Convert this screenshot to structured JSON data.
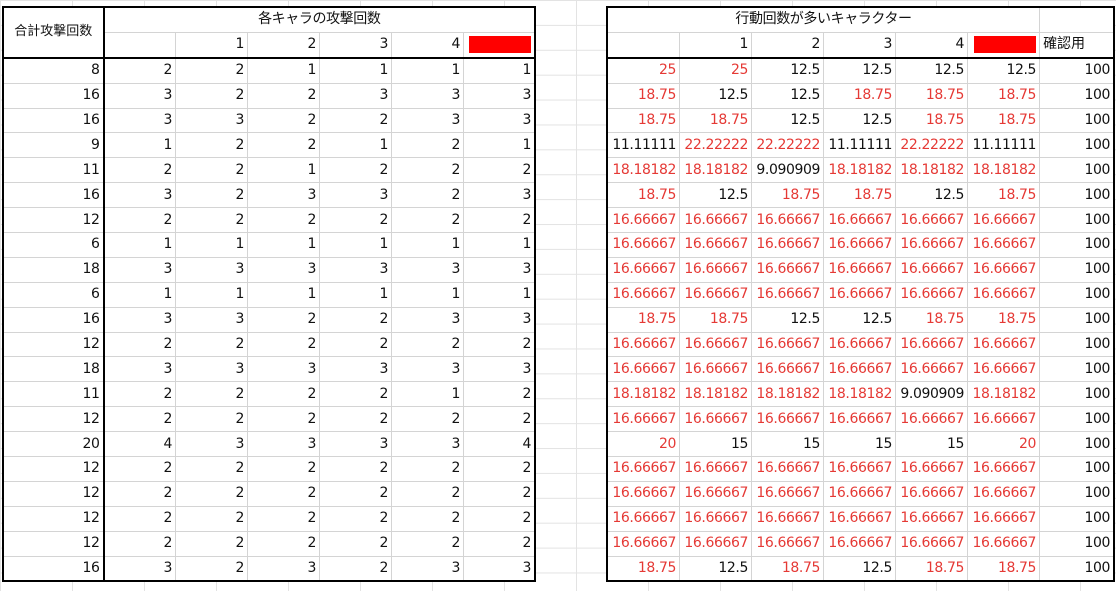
{
  "left": {
    "total_header": "合計攻撃回数",
    "title": "各キャラの攻撃回数",
    "col_numbers": [
      "",
      "1",
      "2",
      "3",
      "4"
    ],
    "rows": [
      [
        "8",
        "2",
        "2",
        "1",
        "1",
        "1",
        "1"
      ],
      [
        "16",
        "3",
        "2",
        "2",
        "3",
        "3",
        "3"
      ],
      [
        "16",
        "3",
        "3",
        "2",
        "2",
        "3",
        "3"
      ],
      [
        "9",
        "1",
        "2",
        "2",
        "1",
        "2",
        "1"
      ],
      [
        "11",
        "2",
        "2",
        "1",
        "2",
        "2",
        "2"
      ],
      [
        "16",
        "3",
        "2",
        "3",
        "3",
        "2",
        "3"
      ],
      [
        "12",
        "2",
        "2",
        "2",
        "2",
        "2",
        "2"
      ],
      [
        "6",
        "1",
        "1",
        "1",
        "1",
        "1",
        "1"
      ],
      [
        "18",
        "3",
        "3",
        "3",
        "3",
        "3",
        "3"
      ],
      [
        "6",
        "1",
        "1",
        "1",
        "1",
        "1",
        "1"
      ],
      [
        "16",
        "3",
        "3",
        "2",
        "2",
        "3",
        "3"
      ],
      [
        "12",
        "2",
        "2",
        "2",
        "2",
        "2",
        "2"
      ],
      [
        "18",
        "3",
        "3",
        "3",
        "3",
        "3",
        "3"
      ],
      [
        "11",
        "2",
        "2",
        "2",
        "2",
        "1",
        "2"
      ],
      [
        "12",
        "2",
        "2",
        "2",
        "2",
        "2",
        "2"
      ],
      [
        "20",
        "4",
        "3",
        "3",
        "3",
        "3",
        "4"
      ],
      [
        "12",
        "2",
        "2",
        "2",
        "2",
        "2",
        "2"
      ],
      [
        "12",
        "2",
        "2",
        "2",
        "2",
        "2",
        "2"
      ],
      [
        "12",
        "2",
        "2",
        "2",
        "2",
        "2",
        "2"
      ],
      [
        "12",
        "2",
        "2",
        "2",
        "2",
        "2",
        "2"
      ],
      [
        "16",
        "3",
        "2",
        "3",
        "2",
        "3",
        "3"
      ]
    ]
  },
  "right": {
    "title": "行動回数が多いキャラクター",
    "col_numbers": [
      "",
      "1",
      "2",
      "3",
      "4"
    ],
    "check_label": "確認用",
    "rows": [
      [
        [
          "25",
          1
        ],
        [
          "25",
          1
        ],
        [
          "12.5",
          0
        ],
        [
          "12.5",
          0
        ],
        [
          "12.5",
          0
        ],
        [
          "12.5",
          0
        ],
        [
          "100",
          0
        ]
      ],
      [
        [
          "18.75",
          1
        ],
        [
          "12.5",
          0
        ],
        [
          "12.5",
          0
        ],
        [
          "18.75",
          1
        ],
        [
          "18.75",
          1
        ],
        [
          "18.75",
          1
        ],
        [
          "100",
          0
        ]
      ],
      [
        [
          "18.75",
          1
        ],
        [
          "18.75",
          1
        ],
        [
          "12.5",
          0
        ],
        [
          "12.5",
          0
        ],
        [
          "18.75",
          1
        ],
        [
          "18.75",
          1
        ],
        [
          "100",
          0
        ]
      ],
      [
        [
          "11.11111",
          0
        ],
        [
          "22.22222",
          1
        ],
        [
          "22.22222",
          1
        ],
        [
          "11.11111",
          0
        ],
        [
          "22.22222",
          1
        ],
        [
          "11.11111",
          0
        ],
        [
          "100",
          0
        ]
      ],
      [
        [
          "18.18182",
          1
        ],
        [
          "18.18182",
          1
        ],
        [
          "9.090909",
          0
        ],
        [
          "18.18182",
          1
        ],
        [
          "18.18182",
          1
        ],
        [
          "18.18182",
          1
        ],
        [
          "100",
          0
        ]
      ],
      [
        [
          "18.75",
          1
        ],
        [
          "12.5",
          0
        ],
        [
          "18.75",
          1
        ],
        [
          "18.75",
          1
        ],
        [
          "12.5",
          0
        ],
        [
          "18.75",
          1
        ],
        [
          "100",
          0
        ]
      ],
      [
        [
          "16.66667",
          1
        ],
        [
          "16.66667",
          1
        ],
        [
          "16.66667",
          1
        ],
        [
          "16.66667",
          1
        ],
        [
          "16.66667",
          1
        ],
        [
          "16.66667",
          1
        ],
        [
          "100",
          0
        ]
      ],
      [
        [
          "16.66667",
          1
        ],
        [
          "16.66667",
          1
        ],
        [
          "16.66667",
          1
        ],
        [
          "16.66667",
          1
        ],
        [
          "16.66667",
          1
        ],
        [
          "16.66667",
          1
        ],
        [
          "100",
          0
        ]
      ],
      [
        [
          "16.66667",
          1
        ],
        [
          "16.66667",
          1
        ],
        [
          "16.66667",
          1
        ],
        [
          "16.66667",
          1
        ],
        [
          "16.66667",
          1
        ],
        [
          "16.66667",
          1
        ],
        [
          "100",
          0
        ]
      ],
      [
        [
          "16.66667",
          1
        ],
        [
          "16.66667",
          1
        ],
        [
          "16.66667",
          1
        ],
        [
          "16.66667",
          1
        ],
        [
          "16.66667",
          1
        ],
        [
          "16.66667",
          1
        ],
        [
          "100",
          0
        ]
      ],
      [
        [
          "18.75",
          1
        ],
        [
          "18.75",
          1
        ],
        [
          "12.5",
          0
        ],
        [
          "12.5",
          0
        ],
        [
          "18.75",
          1
        ],
        [
          "18.75",
          1
        ],
        [
          "100",
          0
        ]
      ],
      [
        [
          "16.66667",
          1
        ],
        [
          "16.66667",
          1
        ],
        [
          "16.66667",
          1
        ],
        [
          "16.66667",
          1
        ],
        [
          "16.66667",
          1
        ],
        [
          "16.66667",
          1
        ],
        [
          "100",
          0
        ]
      ],
      [
        [
          "16.66667",
          1
        ],
        [
          "16.66667",
          1
        ],
        [
          "16.66667",
          1
        ],
        [
          "16.66667",
          1
        ],
        [
          "16.66667",
          1
        ],
        [
          "16.66667",
          1
        ],
        [
          "100",
          0
        ]
      ],
      [
        [
          "18.18182",
          1
        ],
        [
          "18.18182",
          1
        ],
        [
          "18.18182",
          1
        ],
        [
          "18.18182",
          1
        ],
        [
          "9.090909",
          0
        ],
        [
          "18.18182",
          1
        ],
        [
          "100",
          0
        ]
      ],
      [
        [
          "16.66667",
          1
        ],
        [
          "16.66667",
          1
        ],
        [
          "16.66667",
          1
        ],
        [
          "16.66667",
          1
        ],
        [
          "16.66667",
          1
        ],
        [
          "16.66667",
          1
        ],
        [
          "100",
          0
        ]
      ],
      [
        [
          "20",
          1
        ],
        [
          "15",
          0
        ],
        [
          "15",
          0
        ],
        [
          "15",
          0
        ],
        [
          "15",
          0
        ],
        [
          "20",
          1
        ],
        [
          "100",
          0
        ]
      ],
      [
        [
          "16.66667",
          1
        ],
        [
          "16.66667",
          1
        ],
        [
          "16.66667",
          1
        ],
        [
          "16.66667",
          1
        ],
        [
          "16.66667",
          1
        ],
        [
          "16.66667",
          1
        ],
        [
          "100",
          0
        ]
      ],
      [
        [
          "16.66667",
          1
        ],
        [
          "16.66667",
          1
        ],
        [
          "16.66667",
          1
        ],
        [
          "16.66667",
          1
        ],
        [
          "16.66667",
          1
        ],
        [
          "16.66667",
          1
        ],
        [
          "100",
          0
        ]
      ],
      [
        [
          "16.66667",
          1
        ],
        [
          "16.66667",
          1
        ],
        [
          "16.66667",
          1
        ],
        [
          "16.66667",
          1
        ],
        [
          "16.66667",
          1
        ],
        [
          "16.66667",
          1
        ],
        [
          "100",
          0
        ]
      ],
      [
        [
          "16.66667",
          1
        ],
        [
          "16.66667",
          1
        ],
        [
          "16.66667",
          1
        ],
        [
          "16.66667",
          1
        ],
        [
          "16.66667",
          1
        ],
        [
          "16.66667",
          1
        ],
        [
          "100",
          0
        ]
      ],
      [
        [
          "18.75",
          1
        ],
        [
          "12.5",
          0
        ],
        [
          "18.75",
          1
        ],
        [
          "12.5",
          0
        ],
        [
          "18.75",
          1
        ],
        [
          "18.75",
          1
        ],
        [
          "100",
          0
        ]
      ]
    ]
  },
  "colors": {
    "highlight_text": "#e53935",
    "redacted_box": "#ff0000",
    "grid": "#d4d4d4",
    "border": "#000000"
  }
}
